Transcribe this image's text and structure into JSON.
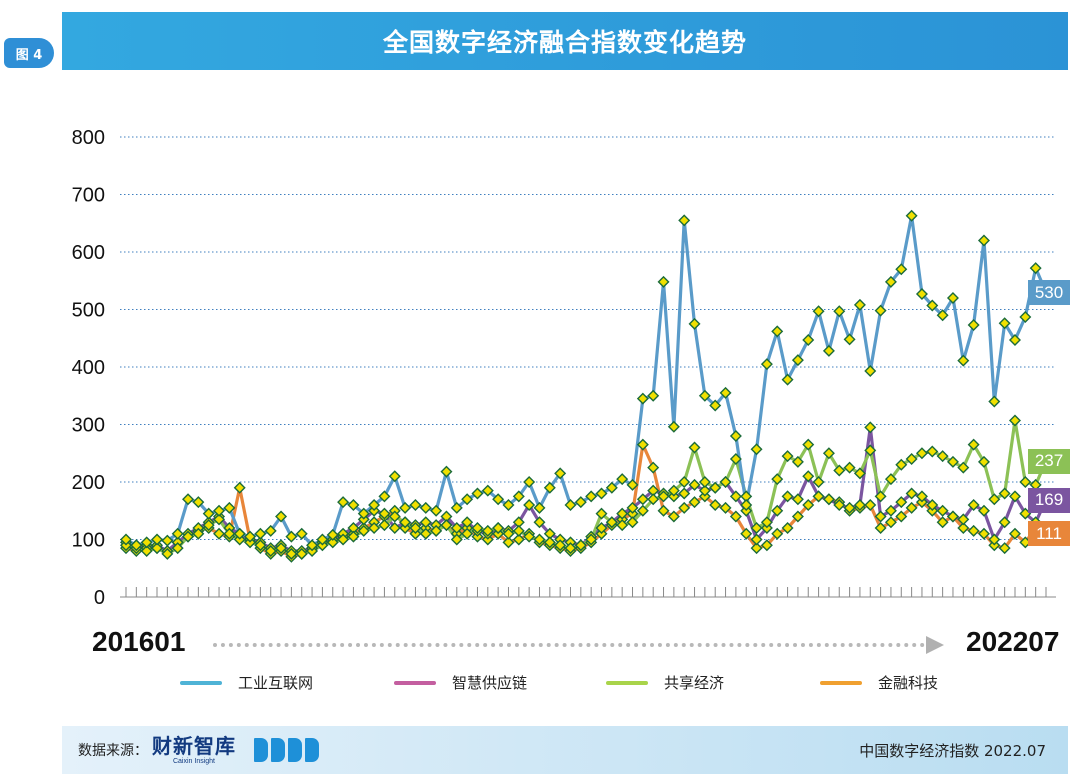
{
  "figure_label": "图 4",
  "title": "全国数字经济融合指数变化趋势",
  "x_axis": {
    "start_label": "201601",
    "end_label": "202207"
  },
  "legend": [
    {
      "name": "工业互联网",
      "color": "#4fb3d6"
    },
    {
      "name": "智慧供应链",
      "color": "#c45fa0"
    },
    {
      "name": "共享经济",
      "color": "#a9d44a"
    },
    {
      "name": "金融科技",
      "color": "#f0a030"
    }
  ],
  "footer": {
    "source_label": "数据来源：",
    "logo_text": "财新智库",
    "logo_sub": "Caixin Insight",
    "right_text": "中国数字经济指数 2022.07"
  },
  "colors": {
    "industrial_internet": "#5a9bc9",
    "smart_supply_chain": "#7b55a0",
    "sharing_economy": "#8cc156",
    "fintech": "#e8863a",
    "marker_fill": "#f0e000",
    "marker_stroke": "#1b6b3a"
  },
  "chart_data": {
    "type": "line",
    "ylim": [
      0,
      800
    ],
    "yticks": [
      0,
      100,
      200,
      300,
      400,
      500,
      600,
      700,
      800
    ],
    "x_start": "201601",
    "x_end": "202207",
    "n_points": 79,
    "end_labels": {
      "工业互联网": "530",
      "共享经济": "237",
      "智慧供应链": "169",
      "金融科技": "111"
    },
    "series": [
      {
        "name": "工业互联网",
        "values": [
          100,
          90,
          95,
          100,
          98,
          110,
          170,
          165,
          145,
          150,
          155,
          110,
          105,
          110,
          115,
          140,
          105,
          110,
          90,
          100,
          108,
          165,
          160,
          145,
          160,
          175,
          210,
          155,
          160,
          155,
          150,
          218,
          155,
          170,
          180,
          185,
          170,
          160,
          175,
          200,
          155,
          190,
          215,
          160,
          165,
          175,
          180,
          190,
          205,
          195,
          345,
          350,
          548,
          296,
          655,
          475,
          350,
          333,
          355,
          280,
          160,
          257,
          405,
          462,
          378,
          412,
          447,
          497,
          428,
          497,
          448,
          508,
          393,
          498,
          548,
          570,
          663,
          527,
          507
        ]
      },
      {
        "name": "共享经济",
        "values": [
          90,
          85,
          80,
          85,
          75,
          85,
          105,
          110,
          125,
          135,
          110,
          100,
          95,
          90,
          80,
          85,
          75,
          75,
          80,
          90,
          95,
          100,
          105,
          115,
          120,
          125,
          140,
          130,
          120,
          110,
          115,
          125,
          100,
          110,
          120,
          115,
          120,
          110,
          115,
          105,
          100,
          95,
          90,
          85,
          90,
          100,
          145,
          130,
          125,
          130,
          150,
          170,
          175,
          185,
          200,
          260,
          200,
          190,
          200,
          240,
          175,
          120,
          130,
          205,
          245,
          235,
          265,
          200,
          250,
          220,
          225,
          215,
          255,
          175,
          205,
          230,
          240,
          250,
          253
        ]
      },
      {
        "name": "智慧供应链",
        "values": [
          95,
          90,
          85,
          90,
          80,
          95,
          110,
          120,
          130,
          140,
          120,
          110,
          100,
          95,
          85,
          90,
          80,
          80,
          85,
          95,
          100,
          110,
          120,
          135,
          150,
          145,
          120,
          130,
          125,
          130,
          125,
          140,
          120,
          130,
          115,
          110,
          120,
          115,
          130,
          160,
          130,
          110,
          100,
          95,
          90,
          105,
          120,
          130,
          145,
          155,
          170,
          185,
          180,
          175,
          180,
          195,
          185,
          190,
          200,
          175,
          150,
          100,
          120,
          150,
          175,
          170,
          210,
          175,
          170,
          160,
          155,
          160,
          295,
          140,
          150,
          165,
          180,
          175,
          160
        ]
      },
      {
        "name": "金融科技",
        "values": [
          85,
          80,
          90,
          85,
          80,
          95,
          105,
          115,
          120,
          110,
          105,
          190,
          100,
          85,
          75,
          80,
          70,
          75,
          85,
          95,
          100,
          105,
          110,
          120,
          130,
          140,
          150,
          120,
          110,
          120,
          115,
          125,
          110,
          120,
          105,
          100,
          110,
          95,
          100,
          110,
          95,
          90,
          85,
          80,
          85,
          95,
          110,
          125,
          135,
          145,
          265,
          225,
          150,
          140,
          155,
          165,
          175,
          160,
          155,
          140,
          110,
          85,
          90,
          110,
          120,
          140,
          160,
          175,
          170,
          165,
          150,
          155,
          160,
          120,
          130,
          140,
          155,
          165,
          150
        ]
      }
    ],
    "series_tail_note": "",
    "tail": {
      "工业互联网": [
        490,
        520,
        411,
        473,
        620,
        340,
        476,
        447,
        487,
        572,
        530
      ],
      "共享经济": [
        245,
        235,
        225,
        265,
        235,
        170,
        180,
        307,
        200,
        195,
        237
      ],
      "智慧供应链": [
        150,
        140,
        135,
        160,
        150,
        100,
        130,
        175,
        145,
        130,
        169
      ],
      "金融科技": [
        130,
        140,
        120,
        115,
        110,
        90,
        85,
        110,
        95,
        120,
        111
      ]
    }
  }
}
